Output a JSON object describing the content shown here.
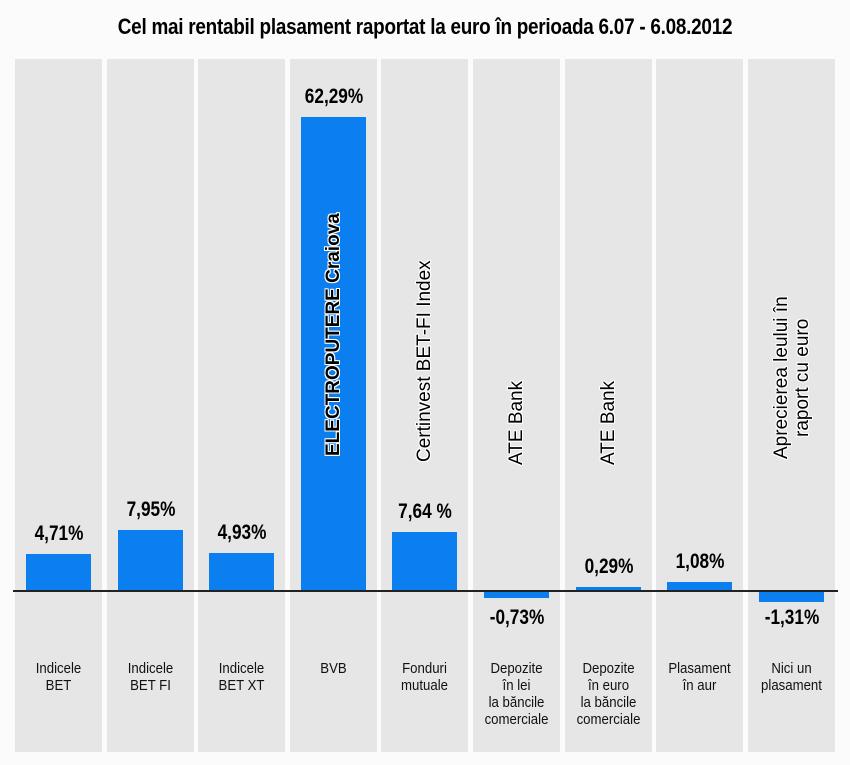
{
  "chart_data": {
    "type": "bar",
    "title": "Cel mai rentabil plasament raportat la euro în perioada 6.07 - 6.08.2012",
    "xlabel": "",
    "ylabel": "",
    "ylim": [
      -2,
      65
    ],
    "grid": false,
    "bar_color": "#0b7ff0",
    "categories": [
      "Indicele\nBET",
      "Indicele\nBET FI",
      "Indicele\nBET XT",
      "BVB",
      "Fonduri\nmutuale",
      "Depozite\nîn lei\nla băncile\ncomerciale",
      "Depozite\nîn euro\nla băncile\ncomerciale",
      "Plasament\nîn aur",
      "Nici un\nplasament"
    ],
    "values": [
      4.71,
      7.95,
      4.93,
      62.29,
      7.64,
      -0.73,
      0.29,
      1.08,
      -1.31
    ],
    "data_labels": [
      "4,71%",
      "7,95%",
      "4,93%",
      "62,29%",
      "7,64 %",
      "-0,73%",
      "0,29%",
      "1,08%",
      "-1,31%"
    ],
    "annotations": [
      "",
      "",
      "",
      "ELECTROPUTERE Craiova",
      "Certinvest BET-FI Index",
      "ATE Bank",
      "ATE Bank",
      "",
      "Aprecierea leului în\nraport cu euro"
    ]
  }
}
